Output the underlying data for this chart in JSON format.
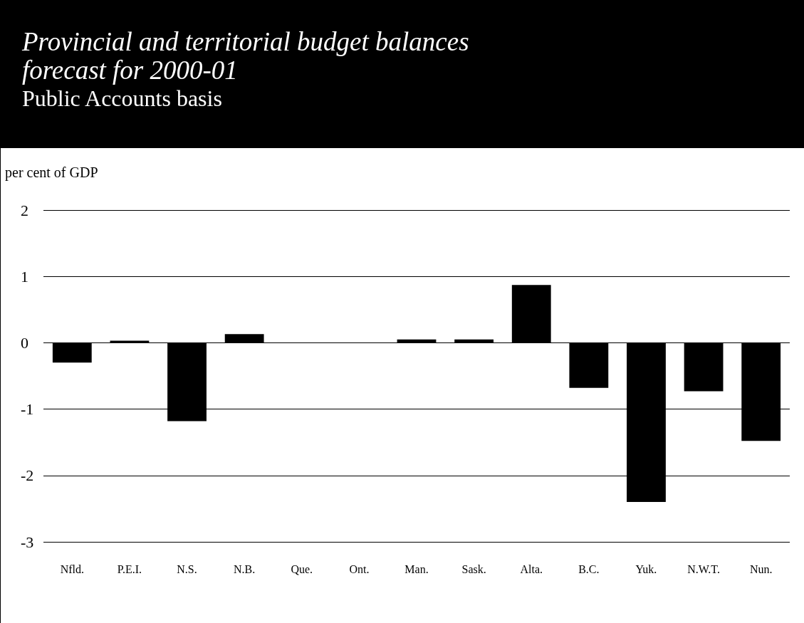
{
  "chart_data": {
    "type": "bar",
    "title": "Provincial and territorial budget balances forecast for 2000-01",
    "subtitle": "Public Accounts basis",
    "ylabel": "per cent of GDP",
    "categories": [
      "Nfld.",
      "P.E.I.",
      "N.S.",
      "N.B.",
      "Que.",
      "Ont.",
      "Man.",
      "Sask.",
      "Alta.",
      "B.C.",
      "Yuk.",
      "N.W.T.",
      "Nun."
    ],
    "values": [
      -0.3,
      0.03,
      -1.18,
      0.13,
      0,
      0,
      0.05,
      0.05,
      0.87,
      -0.68,
      -2.4,
      -0.73,
      -1.48
    ],
    "color": "#000000",
    "ylim": [
      -3,
      2
    ],
    "yticks": [
      -3,
      -2,
      -1,
      0,
      1,
      2
    ],
    "grid": "y"
  }
}
